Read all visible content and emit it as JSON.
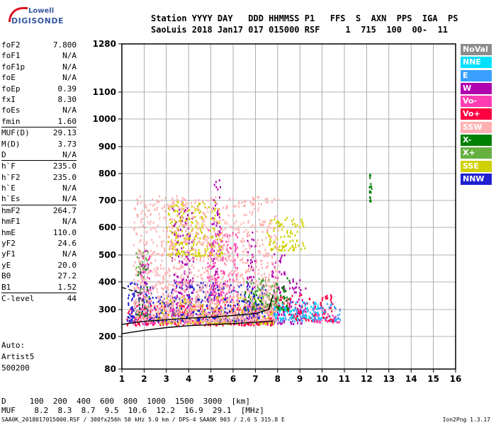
{
  "logo": {
    "top": "Lowell",
    "bottom": "DIGISONDE"
  },
  "header": {
    "line1": "Station YYYY DAY   DDD HHMMSS P1   FFS  S  AXN  PPS  IGA  PS",
    "line2": "SaoLuis 2018 Jan17 017 015000 RSF     1  715  100  00-  11"
  },
  "params": [
    {
      "k": "foF2",
      "v": "7.800"
    },
    {
      "k": "foF1",
      "v": "N/A"
    },
    {
      "k": "foF1p",
      "v": "N/A"
    },
    {
      "k": "foE",
      "v": "N/A"
    },
    {
      "k": "foEp",
      "v": "0.39"
    },
    {
      "k": "fxI",
      "v": "8.30"
    },
    {
      "k": "foEs",
      "v": "N/A"
    },
    {
      "k": "fmin",
      "v": "1.60"
    },
    {
      "k": "MUF(D)",
      "v": "29.13",
      "sep": true
    },
    {
      "k": "M(D)",
      "v": "3.73"
    },
    {
      "k": "D",
      "v": "N/A"
    },
    {
      "k": "h`F",
      "v": "235.0",
      "sep": true
    },
    {
      "k": "h`F2",
      "v": "235.0"
    },
    {
      "k": "h`E",
      "v": "N/A"
    },
    {
      "k": "h`Es",
      "v": "N/A"
    },
    {
      "k": "hmF2",
      "v": "264.7",
      "sep": true
    },
    {
      "k": "hmF1",
      "v": "N/A"
    },
    {
      "k": "hmE",
      "v": "110.0"
    },
    {
      "k": "yF2",
      "v": "24.6"
    },
    {
      "k": "yF1",
      "v": "N/A"
    },
    {
      "k": "yE",
      "v": "20.0"
    },
    {
      "k": "B0",
      "v": "27.2"
    },
    {
      "k": "B1",
      "v": "1.52"
    },
    {
      "k": "C-level",
      "v": "44",
      "sep": true
    }
  ],
  "auto": [
    "Auto:",
    "Artist5",
    "500200"
  ],
  "muf_table": {
    "row1": "D     100  200  400  600  800  1000  1500  3000  [km]",
    "row2": "MUF    8.2  8.3  8.7  9.5  10.6  12.2  16.9  29.1  [MHz]"
  },
  "footer": "SAA0K_2018017015000.RSF / 300fx256h 50 kHz 5.0 km / DPS-4 SAA0K 903 / 2.6 S 315.8 E",
  "footer_right": "Ion2Png 1.3.17",
  "legend": [
    {
      "label": "NoVal",
      "color": "#8c8c8c"
    },
    {
      "label": "NNE",
      "color": "#00e0ff"
    },
    {
      "label": "E",
      "color": "#3aa0ff"
    },
    {
      "label": "W",
      "color": "#b000b0"
    },
    {
      "label": "Vo-",
      "color": "#ff3cb4"
    },
    {
      "label": "Vo+",
      "color": "#ff0040"
    },
    {
      "label": "SSW",
      "color": "#ffb0b0"
    },
    {
      "label": "X-",
      "color": "#008000"
    },
    {
      "label": "X+",
      "color": "#66b040"
    },
    {
      "label": "SSE",
      "color": "#d0d000"
    },
    {
      "label": "NNW",
      "color": "#2020d0"
    }
  ],
  "chart_data": {
    "type": "scatter",
    "xlabel": "",
    "ylabel": "",
    "xlim": [
      1,
      16
    ],
    "x_ticks": [
      1,
      2,
      3,
      4,
      5,
      6,
      7,
      8,
      9,
      10,
      11,
      12,
      13,
      14,
      15,
      16
    ],
    "ylim": [
      80,
      1280
    ],
    "y_ticks": [
      80,
      200,
      300,
      400,
      500,
      600,
      700,
      800,
      900,
      1000,
      1100,
      1280
    ],
    "grid": true,
    "series": [
      {
        "name": "W",
        "color": "#b000b0",
        "regions": [
          [
            1.7,
            2.2,
            250,
            520
          ],
          [
            3.2,
            4.2,
            280,
            680
          ],
          [
            5.0,
            5.4,
            280,
            780
          ],
          [
            6.6,
            7.0,
            270,
            620
          ],
          [
            7.7,
            8.3,
            250,
            520
          ],
          [
            8.5,
            9.3,
            250,
            420
          ]
        ]
      },
      {
        "name": "Vo-",
        "color": "#ff3cb4",
        "regions": [
          [
            1.2,
            7.8,
            250,
            330
          ],
          [
            1.8,
            2.3,
            330,
            500
          ],
          [
            4.8,
            6.2,
            330,
            600
          ],
          [
            9.5,
            10.8,
            255,
            320
          ]
        ]
      },
      {
        "name": "Vo+",
        "color": "#ff0040",
        "regions": [
          [
            1.2,
            7.8,
            245,
            320
          ],
          [
            7.8,
            10.5,
            260,
            360
          ]
        ]
      },
      {
        "name": "SSE",
        "color": "#d0d000",
        "regions": [
          [
            3.0,
            5.5,
            500,
            700
          ],
          [
            7.5,
            9.2,
            520,
            640
          ],
          [
            2.5,
            7.8,
            250,
            350
          ]
        ]
      },
      {
        "name": "E",
        "color": "#3aa0ff",
        "regions": [
          [
            7.8,
            10.8,
            260,
            330
          ]
        ]
      },
      {
        "name": "X-",
        "color": "#008000",
        "regions": [
          [
            1.6,
            2.2,
            280,
            450
          ],
          [
            6.5,
            8.5,
            300,
            420
          ],
          [
            12.1,
            12.2,
            700,
            820
          ]
        ]
      },
      {
        "name": "X+",
        "color": "#66b040",
        "regions": [
          [
            1.6,
            2.2,
            450,
            520
          ],
          [
            6.8,
            8.0,
            300,
            420
          ]
        ]
      },
      {
        "name": "NNW",
        "color": "#2020d0",
        "regions": [
          [
            1.2,
            7.5,
            260,
            400
          ]
        ]
      },
      {
        "name": "SSW",
        "color": "#ffb0b0",
        "regions": [
          [
            1.5,
            8.0,
            260,
            720
          ]
        ]
      },
      {
        "name": "NNE",
        "color": "#00e0ff",
        "regions": [
          [
            7.8,
            10.0,
            270,
            330
          ]
        ]
      }
    ],
    "profile": [
      [
        1.0,
        210
      ],
      [
        2.0,
        223
      ],
      [
        3.0,
        233
      ],
      [
        4.0,
        240
      ],
      [
        5.0,
        244
      ],
      [
        6.0,
        248
      ],
      [
        7.0,
        252
      ],
      [
        7.8,
        258
      ]
    ],
    "trace": [
      [
        1.0,
        245
      ],
      [
        2.0,
        256
      ],
      [
        3.0,
        262
      ],
      [
        4.0,
        268
      ],
      [
        5.0,
        272
      ],
      [
        6.0,
        278
      ],
      [
        7.0,
        285
      ],
      [
        7.6,
        300
      ],
      [
        7.8,
        355
      ]
    ],
    "dashed": [
      [
        1.0,
        380
      ],
      [
        1.8,
        360
      ]
    ]
  }
}
